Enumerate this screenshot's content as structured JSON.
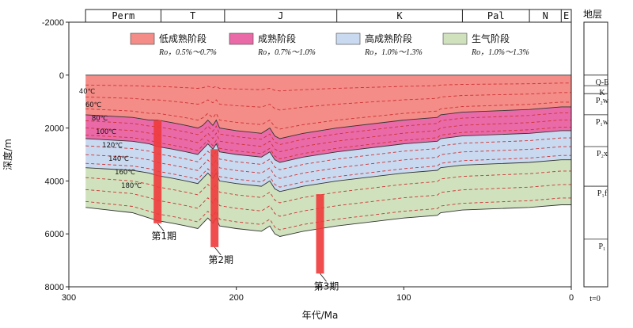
{
  "chart_data": {
    "type": "area",
    "xlabel": "年代/Ma",
    "ylabel": "深度/m",
    "x_ticks": [
      300,
      200,
      100,
      0
    ],
    "y_ticks": [
      -2000,
      0,
      2000,
      4000,
      6000,
      8000
    ],
    "xlim": [
      300,
      0
    ],
    "ylim": [
      -2000,
      8000
    ],
    "periods": [
      "Perm",
      "T",
      "J",
      "K",
      "Pal",
      "N",
      "E"
    ],
    "period_bounds": [
      [
        290,
        245
      ],
      [
        245,
        207
      ],
      [
        207,
        140
      ],
      [
        140,
        65
      ],
      [
        65,
        25
      ],
      [
        25,
        6
      ],
      [
        6,
        0
      ]
    ],
    "legend": [
      {
        "label": "低成熟阶段",
        "sub": "Ro，0.5%～0.7%",
        "color": "#f48c87"
      },
      {
        "label": "成熟阶段",
        "sub": "Ro，0.7%～1.0%",
        "color": "#ea6aa8"
      },
      {
        "label": "高成熟阶段",
        "sub": "Ro，1.0%～1.3%",
        "color": "#c9d9f0"
      },
      {
        "label": "生气阶段",
        "sub": "Ro，1.0%～1.3%",
        "color": "#cfe2bd"
      }
    ],
    "x": [
      290,
      262,
      252,
      247,
      238,
      230,
      223,
      220,
      217,
      214,
      212,
      210,
      200,
      185,
      180,
      177,
      174,
      160,
      140,
      100,
      80,
      78,
      65,
      25,
      6,
      0
    ],
    "series": [
      {
        "name": "低成熟阶段",
        "top": [
          0,
          0,
          0,
          0,
          0,
          0,
          0,
          0,
          0,
          0,
          0,
          0,
          0,
          0,
          0,
          0,
          0,
          0,
          0,
          0,
          0,
          0,
          0,
          0,
          0,
          0
        ],
        "bottom": [
          1500,
          1600,
          1700,
          1700,
          1800,
          1900,
          2000,
          1900,
          1700,
          1900,
          1700,
          2000,
          2100,
          2200,
          2000,
          2300,
          2400,
          2200,
          2000,
          1700,
          1600,
          1500,
          1400,
          1300,
          1200,
          1200
        ]
      },
      {
        "name": "成熟阶段",
        "top": [
          1500,
          1600,
          1700,
          1700,
          1800,
          1900,
          2000,
          1900,
          1700,
          1900,
          1700,
          2000,
          2100,
          2200,
          2000,
          2300,
          2400,
          2200,
          2000,
          1700,
          1600,
          1500,
          1400,
          1300,
          1200,
          1200
        ],
        "bottom": [
          2400,
          2500,
          2600,
          2700,
          2800,
          2900,
          3000,
          2800,
          2600,
          2800,
          2600,
          2900,
          3000,
          3100,
          2900,
          3200,
          3300,
          3100,
          2900,
          2600,
          2500,
          2400,
          2300,
          2200,
          2100,
          2100
        ]
      },
      {
        "name": "高成熟阶段",
        "top": [
          2400,
          2500,
          2600,
          2700,
          2800,
          2900,
          3000,
          2800,
          2600,
          2800,
          2600,
          2900,
          3000,
          3100,
          2900,
          3200,
          3300,
          3100,
          2900,
          2600,
          2500,
          2400,
          2300,
          2200,
          2100,
          2100
        ],
        "bottom": [
          3500,
          3600,
          3700,
          3800,
          3900,
          4000,
          4100,
          3900,
          3700,
          3900,
          3700,
          4000,
          4100,
          4200,
          4000,
          4300,
          4400,
          4200,
          4000,
          3700,
          3600,
          3500,
          3400,
          3300,
          3200,
          3200
        ]
      },
      {
        "name": "生气阶段",
        "top": [
          3500,
          3600,
          3700,
          3800,
          3900,
          4000,
          4100,
          3900,
          3700,
          3900,
          3700,
          4000,
          4100,
          4200,
          4000,
          4300,
          4400,
          4200,
          4000,
          3700,
          3600,
          3500,
          3400,
          3300,
          3200,
          3200
        ],
        "bottom": [
          5000,
          5200,
          5400,
          5500,
          5600,
          5700,
          5800,
          5600,
          5400,
          5600,
          5400,
          5700,
          5800,
          5900,
          5700,
          6000,
          6100,
          5900,
          5700,
          5400,
          5300,
          5200,
          5100,
          5000,
          4900,
          4900
        ]
      }
    ],
    "temperature_labels": [
      "40℃",
      "60℃",
      "80℃",
      "100℃",
      "120℃",
      "140℃",
      "160℃",
      "180℃"
    ],
    "stratigraphy_title": "地层",
    "stratigraphy": [
      {
        "label": "Q-E",
        "depth": 0
      },
      {
        "label": "K",
        "depth": 400
      },
      {
        "label": "P₂w",
        "depth": 700
      },
      {
        "label": "P₁w",
        "depth": 1500
      },
      {
        "label": "P₂x",
        "depth": 2700
      },
      {
        "label": "P₁f",
        "depth": 4200
      },
      {
        "label": "P₁",
        "depth": 6200
      }
    ],
    "strat_bottom_label": "t=0",
    "episodes": [
      {
        "label": "第1期",
        "age": 247,
        "depth_top": 1700,
        "depth_bottom": 5600
      },
      {
        "label": "第2期",
        "age": 213,
        "depth_top": 2800,
        "depth_bottom": 6500
      },
      {
        "label": "第3期",
        "age": 150,
        "depth_top": 4500,
        "depth_bottom": 7500
      }
    ]
  },
  "colors": {
    "axis": "#222222",
    "isotherm": "#cc3333",
    "episode": "#ee3b3b"
  }
}
